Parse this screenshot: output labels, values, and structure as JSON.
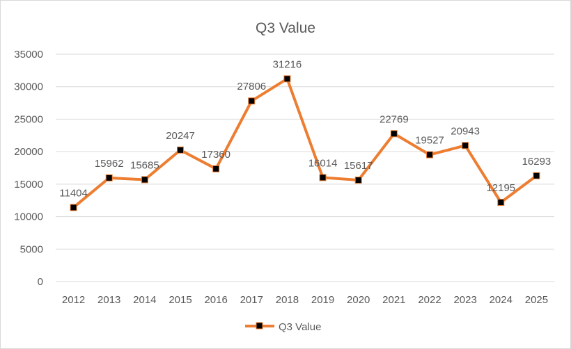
{
  "chart_data": {
    "type": "line",
    "title": "Q3 Value",
    "xlabel": "",
    "ylabel": "",
    "categories": [
      "2012",
      "2013",
      "2014",
      "2015",
      "2016",
      "2017",
      "2018",
      "2019",
      "2020",
      "2021",
      "2022",
      "2023",
      "2024",
      "2025"
    ],
    "series": [
      {
        "name": "Q3 Value",
        "values": [
          11404,
          15962,
          15685,
          20247,
          17360,
          27806,
          31216,
          16014,
          15617,
          22769,
          19527,
          20943,
          12195,
          16293
        ]
      }
    ],
    "ylim": [
      0,
      35000
    ],
    "yticks": [
      0,
      5000,
      10000,
      15000,
      20000,
      25000,
      30000,
      35000
    ],
    "grid": true,
    "legend": "bottom",
    "data_labels": true,
    "colors": {
      "line": "#ED7D31",
      "marker": "#000000",
      "grid": "#D9D9D9",
      "text": "#595959"
    }
  }
}
